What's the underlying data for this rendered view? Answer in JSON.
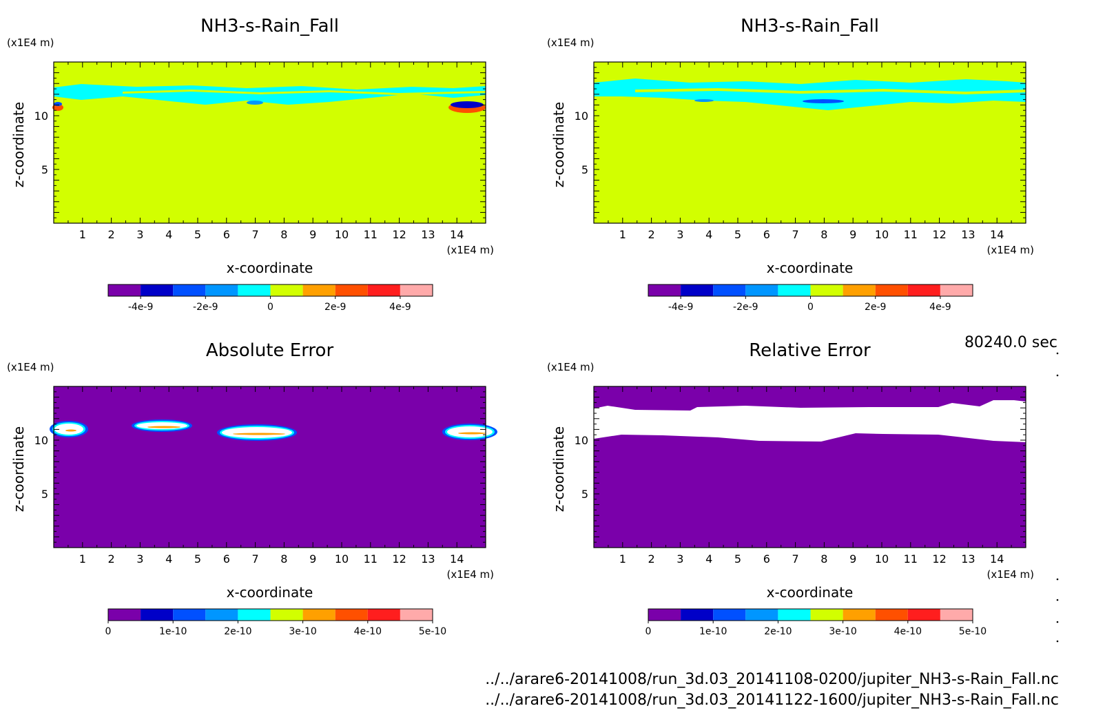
{
  "time_label": "80240.0 sec",
  "file_paths": [
    "../../arare6-20141008/run_3d.03_20141108-0200/jupiter_NH3-s-Rain_Fall.nc",
    "../../arare6-20141008/run_3d.03_20141122-1600/jupiter_NH3-s-Rain_Fall.nc"
  ],
  "colors": {
    "colorbar": [
      "#7a00aa",
      "#0000c8",
      "#0050ff",
      "#0096ff",
      "#00ffff",
      "#d2ff00",
      "#ffa000",
      "#ff5000",
      "#ff1e1e",
      "#ffaaaa"
    ],
    "background_field": "#d2ff00",
    "error_field": "#7a00aa"
  },
  "chart_data": [
    {
      "type": "heatmap",
      "title": "NH3-s-Rain_Fall",
      "xlabel": "x-coordinate",
      "ylabel": "z-coordinate",
      "x_unit": "(x1E4 m)",
      "y_unit": "(x1E4 m)",
      "xlim": [
        0,
        15
      ],
      "ylim": [
        0,
        15
      ],
      "xticks": [
        "1",
        "2",
        "3",
        "4",
        "5",
        "6",
        "7",
        "8",
        "9",
        "10",
        "11",
        "12",
        "13",
        "14"
      ],
      "yticks": [
        "5",
        "10"
      ],
      "colorbar_ticks": [
        "-4e-9",
        "-2e-9",
        "0",
        "2e-9",
        "4e-9"
      ],
      "colorbar_range": [
        -5e-09,
        5e-09
      ]
    },
    {
      "type": "heatmap",
      "title": "NH3-s-Rain_Fall",
      "xlabel": "x-coordinate",
      "ylabel": "z-coordinate",
      "x_unit": "(x1E4 m)",
      "y_unit": "(x1E4 m)",
      "xlim": [
        0,
        15
      ],
      "ylim": [
        0,
        15
      ],
      "xticks": [
        "1",
        "2",
        "3",
        "4",
        "5",
        "6",
        "7",
        "8",
        "9",
        "10",
        "11",
        "12",
        "13",
        "14"
      ],
      "yticks": [
        "5",
        "10"
      ],
      "colorbar_ticks": [
        "-4e-9",
        "-2e-9",
        "0",
        "2e-9",
        "4e-9"
      ],
      "colorbar_range": [
        -5e-09,
        5e-09
      ]
    },
    {
      "type": "heatmap",
      "title": "Absolute Error",
      "xlabel": "x-coordinate",
      "ylabel": "z-coordinate",
      "x_unit": "(x1E4 m)",
      "y_unit": "(x1E4 m)",
      "xlim": [
        0,
        15
      ],
      "ylim": [
        0,
        15
      ],
      "xticks": [
        "1",
        "2",
        "3",
        "4",
        "5",
        "6",
        "7",
        "8",
        "9",
        "10",
        "11",
        "12",
        "13",
        "14"
      ],
      "yticks": [
        "5",
        "10"
      ],
      "colorbar_ticks": [
        "0",
        "1e-10",
        "2e-10",
        "3e-10",
        "4e-10",
        "5e-10"
      ],
      "colorbar_range": [
        0,
        5e-10
      ]
    },
    {
      "type": "heatmap",
      "title": "Relative Error",
      "xlabel": "x-coordinate",
      "ylabel": "z-coordinate",
      "x_unit": "(x1E4 m)",
      "y_unit": "(x1E4 m)",
      "xlim": [
        0,
        15
      ],
      "ylim": [
        0,
        15
      ],
      "xticks": [
        "1",
        "2",
        "3",
        "4",
        "5",
        "6",
        "7",
        "8",
        "9",
        "10",
        "11",
        "12",
        "13",
        "14"
      ],
      "yticks": [
        "5",
        "10"
      ],
      "colorbar_ticks": [
        "0",
        "1e-10",
        "2e-10",
        "3e-10",
        "4e-10",
        "5e-10"
      ],
      "colorbar_range": [
        0,
        5e-10
      ]
    }
  ]
}
